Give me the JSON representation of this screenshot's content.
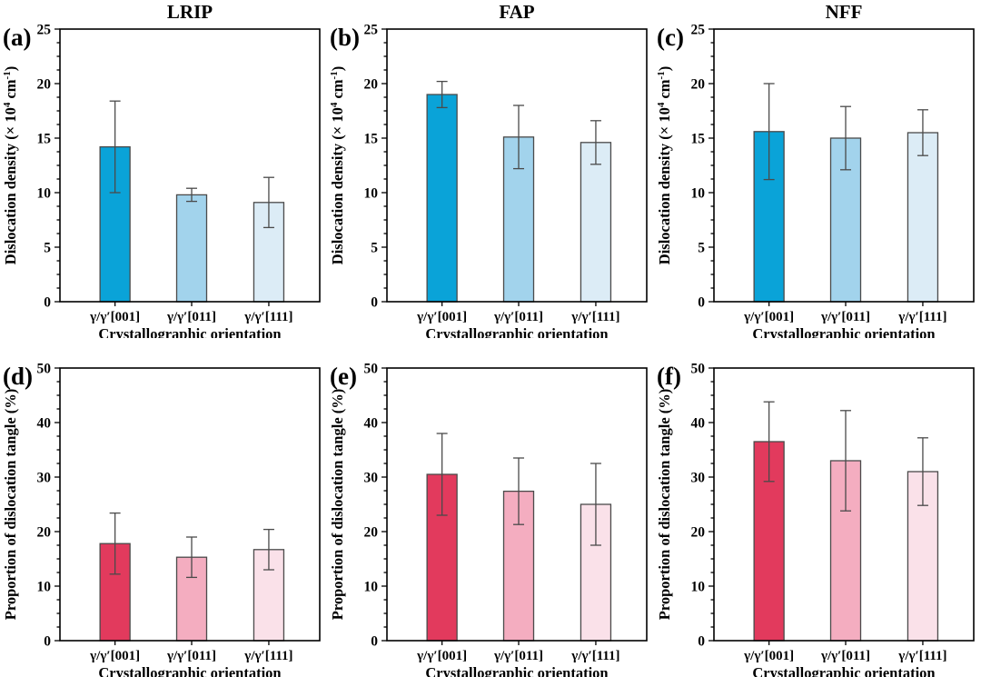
{
  "figure": {
    "columns": [
      "LRIP",
      "FAP",
      "NFF"
    ],
    "row_measures": [
      "Dislocation density (× 10⁴ cm⁻¹)",
      "Proportion of dislocation tangle (%)"
    ],
    "xlabel": "Crystallographic orientation",
    "categories": [
      "γ/γ′[001]",
      "γ/γ′[011]",
      "γ/γ′[111]"
    ],
    "colors": {
      "blue_bars": [
        "#0aa3d8",
        "#a2d3ec",
        "#dcecf6"
      ],
      "pink_bars": [
        "#e23a5d",
        "#f4adc0",
        "#fae1e9"
      ],
      "bar_edge": "#4a4a4a",
      "error_bar": "#4a4a4a",
      "axis": "#000000"
    }
  },
  "chart_data": [
    {
      "type": "bar",
      "panel_label": "(a)",
      "title": "LRIP",
      "categories": [
        "γ/γ′[001]",
        "γ/γ′[011]",
        "γ/γ′[111]"
      ],
      "values": [
        14.2,
        9.8,
        9.1
      ],
      "errors": [
        4.2,
        0.6,
        2.3
      ],
      "ylabel_parts": [
        {
          "t": "Dislocation density (× 10"
        },
        {
          "t": "4",
          "sup": true
        },
        {
          "t": " cm"
        },
        {
          "t": "-1",
          "sup": true
        },
        {
          "t": ")"
        }
      ],
      "xlabel": "Crystallographic orientation",
      "ylim": [
        0,
        25
      ],
      "yticks": [
        0,
        5,
        10,
        15,
        20,
        25
      ],
      "minor_step": 1.25,
      "bar_colors": [
        "#0aa3d8",
        "#a2d3ec",
        "#dcecf6"
      ],
      "legend": "none",
      "grid": "off"
    },
    {
      "type": "bar",
      "panel_label": "(b)",
      "title": "FAP",
      "categories": [
        "γ/γ′[001]",
        "γ/γ′[011]",
        "γ/γ′[111]"
      ],
      "values": [
        19.0,
        15.1,
        14.6
      ],
      "errors": [
        1.2,
        2.9,
        2.0
      ],
      "ylabel_parts": [
        {
          "t": "Dislocation density (× 10"
        },
        {
          "t": "4",
          "sup": true
        },
        {
          "t": " cm"
        },
        {
          "t": "-1",
          "sup": true
        },
        {
          "t": ")"
        }
      ],
      "xlabel": "Crystallographic orientation",
      "ylim": [
        0,
        25
      ],
      "yticks": [
        0,
        5,
        10,
        15,
        20,
        25
      ],
      "minor_step": 1.25,
      "bar_colors": [
        "#0aa3d8",
        "#a2d3ec",
        "#dcecf6"
      ],
      "legend": "none",
      "grid": "off"
    },
    {
      "type": "bar",
      "panel_label": "(c)",
      "title": "NFF",
      "categories": [
        "γ/γ′[001]",
        "γ/γ′[011]",
        "γ/γ′[111]"
      ],
      "values": [
        15.6,
        15.0,
        15.5
      ],
      "errors": [
        4.4,
        2.9,
        2.1
      ],
      "ylabel_parts": [
        {
          "t": "Dislocation density (× 10"
        },
        {
          "t": "4",
          "sup": true
        },
        {
          "t": " cm"
        },
        {
          "t": "-1",
          "sup": true
        },
        {
          "t": ")"
        }
      ],
      "xlabel": "Crystallographic orientation",
      "ylim": [
        0,
        25
      ],
      "yticks": [
        0,
        5,
        10,
        15,
        20,
        25
      ],
      "minor_step": 1.25,
      "bar_colors": [
        "#0aa3d8",
        "#a2d3ec",
        "#dcecf6"
      ],
      "legend": "none",
      "grid": "off"
    },
    {
      "type": "bar",
      "panel_label": "(d)",
      "title": "",
      "categories": [
        "γ/γ′[001]",
        "γ/γ′[011]",
        "γ/γ′[111]"
      ],
      "values": [
        17.8,
        15.3,
        16.7
      ],
      "errors": [
        5.6,
        3.7,
        3.7
      ],
      "ylabel_parts": [
        {
          "t": "Proportion of dislocation tangle  (%)"
        }
      ],
      "xlabel": "Crystallographic orientation",
      "ylim": [
        0,
        50
      ],
      "yticks": [
        0,
        10,
        20,
        30,
        40,
        50
      ],
      "minor_step": 2.5,
      "bar_colors": [
        "#e23a5d",
        "#f4adc0",
        "#fae1e9"
      ],
      "legend": "none",
      "grid": "off"
    },
    {
      "type": "bar",
      "panel_label": "(e)",
      "title": "",
      "categories": [
        "γ/γ′[001]",
        "γ/γ′[011]",
        "γ/γ′[111]"
      ],
      "values": [
        30.5,
        27.4,
        25.0
      ],
      "errors": [
        7.5,
        6.1,
        7.5
      ],
      "ylabel_parts": [
        {
          "t": "Proportion of dislocation tangle  (%)"
        }
      ],
      "xlabel": "Crystallographic orientation",
      "ylim": [
        0,
        50
      ],
      "yticks": [
        0,
        10,
        20,
        30,
        40,
        50
      ],
      "minor_step": 2.5,
      "bar_colors": [
        "#e23a5d",
        "#f4adc0",
        "#fae1e9"
      ],
      "legend": "none",
      "grid": "off"
    },
    {
      "type": "bar",
      "panel_label": "(f)",
      "title": "",
      "categories": [
        "γ/γ′[001]",
        "γ/γ′[011]",
        "γ/γ′[111]"
      ],
      "values": [
        36.5,
        33.0,
        31.0
      ],
      "errors": [
        7.3,
        9.2,
        6.2
      ],
      "ylabel_parts": [
        {
          "t": "Proportion of dislocation tangle  (%)"
        }
      ],
      "xlabel": "Crystallographic orientation",
      "ylim": [
        0,
        50
      ],
      "yticks": [
        0,
        10,
        20,
        30,
        40,
        50
      ],
      "minor_step": 2.5,
      "bar_colors": [
        "#e23a5d",
        "#f4adc0",
        "#fae1e9"
      ],
      "legend": "none",
      "grid": "off"
    }
  ]
}
